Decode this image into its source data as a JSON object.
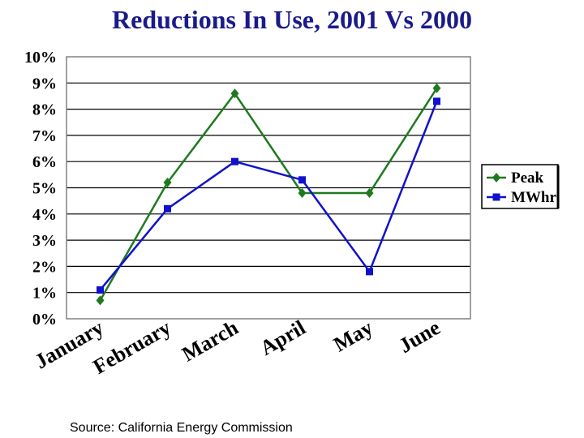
{
  "chart_data": {
    "type": "line",
    "title": "Reductions In Use, 2001 Vs 2000",
    "categories": [
      "January",
      "February",
      "March",
      "April",
      "May",
      "June"
    ],
    "ylim": [
      0,
      10
    ],
    "yticks": [
      "0%",
      "1%",
      "2%",
      "3%",
      "4%",
      "5%",
      "6%",
      "7%",
      "8%",
      "9%",
      "10%"
    ],
    "grid": true,
    "legend_position": "right",
    "series": [
      {
        "name": "Peak",
        "color": "#1f7a1f",
        "marker": "diamond",
        "values": [
          0.7,
          5.2,
          8.6,
          4.8,
          4.8,
          8.8
        ]
      },
      {
        "name": "MWhr",
        "color": "#1111cc",
        "marker": "square",
        "values": [
          1.1,
          4.2,
          6.0,
          5.3,
          1.8,
          8.3
        ]
      }
    ]
  },
  "footer": {
    "source": "Source:  California Energy Commission"
  }
}
